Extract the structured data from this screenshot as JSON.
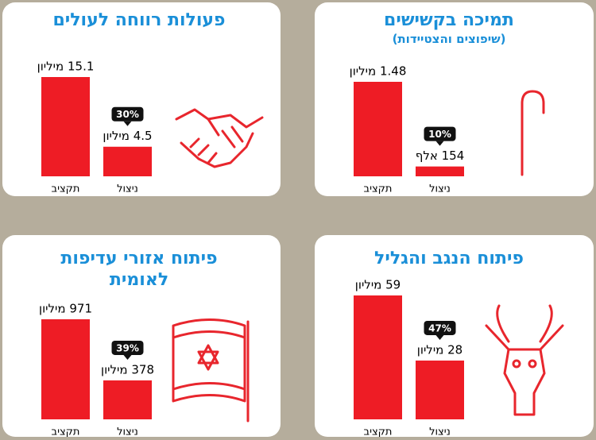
{
  "chart_data": [
    {
      "type": "bar",
      "title": "פעולות רווחה לעולים",
      "categories": [
        "תקציב",
        "ניצול"
      ],
      "values": [
        15.1,
        4.5
      ],
      "value_labels": [
        "15.1 מיליון",
        "4.5 מיליון"
      ],
      "annotation": "30%",
      "color": "#ee1c25"
    },
    {
      "type": "bar",
      "title": "תמיכה בקשישים",
      "subtitle": "(שיפוצים והצטיידות)",
      "categories": [
        "תקציב",
        "ניצול"
      ],
      "values": [
        1.48,
        0.154
      ],
      "value_labels": [
        "1.48 מיליון",
        "154 אלף"
      ],
      "annotation": "10%",
      "color": "#ee1c25"
    },
    {
      "type": "bar",
      "title": "פיתוח אזורי עדיפות לאומית",
      "categories": [
        "תקציב",
        "ניצול"
      ],
      "values": [
        971,
        378
      ],
      "value_labels": [
        "971 מיליון",
        "378 מיליון"
      ],
      "annotation": "39%",
      "color": "#ee1c25"
    },
    {
      "type": "bar",
      "title": "פיתוח הנגב והגליל",
      "categories": [
        "תקציב",
        "ניצול"
      ],
      "values": [
        59,
        28
      ],
      "value_labels": [
        "59 מיליון",
        "28 מיליון"
      ],
      "annotation": "47%",
      "color": "#ee1c25"
    }
  ]
}
